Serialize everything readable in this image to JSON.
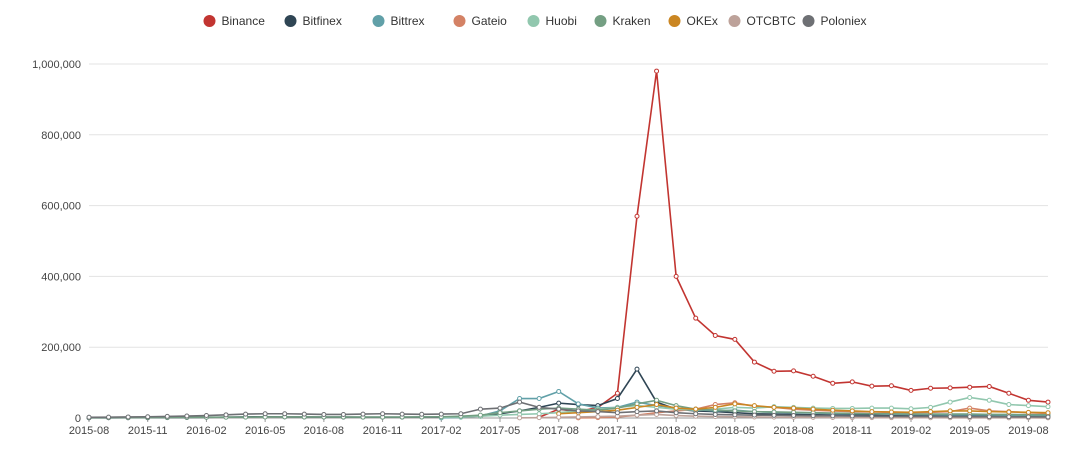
{
  "chart_data": {
    "type": "line",
    "title": "",
    "xlabel": "",
    "ylabel": "",
    "ylim": [
      0,
      1000000
    ],
    "y_ticks": [
      "0",
      "200,000",
      "400,000",
      "600,000",
      "800,000",
      "1,000,000"
    ],
    "y_tick_values": [
      0,
      200000,
      400000,
      600000,
      800000,
      1000000
    ],
    "x_ticks": [
      "2015-08",
      "2015-11",
      "2016-02",
      "2016-05",
      "2016-08",
      "2016-11",
      "2017-02",
      "2017-05",
      "2017-08",
      "2017-11",
      "2018-02",
      "2018-05",
      "2018-08",
      "2018-11",
      "2019-02",
      "2019-05",
      "2019-08"
    ],
    "grid": "horizontal",
    "legend_position": "top-center",
    "x": [
      "2015-08",
      "2015-09",
      "2015-10",
      "2015-11",
      "2015-12",
      "2016-01",
      "2016-02",
      "2016-03",
      "2016-04",
      "2016-05",
      "2016-06",
      "2016-07",
      "2016-08",
      "2016-09",
      "2016-10",
      "2016-11",
      "2016-12",
      "2017-01",
      "2017-02",
      "2017-03",
      "2017-04",
      "2017-05",
      "2017-06",
      "2017-07",
      "2017-08",
      "2017-09",
      "2017-10",
      "2017-11",
      "2017-12",
      "2018-01",
      "2018-02",
      "2018-03",
      "2018-04",
      "2018-05",
      "2018-06",
      "2018-07",
      "2018-08",
      "2018-09",
      "2018-10",
      "2018-11",
      "2018-12",
      "2019-01",
      "2019-02",
      "2019-03",
      "2019-04",
      "2019-05",
      "2019-06",
      "2019-07",
      "2019-08",
      "2019-09"
    ],
    "series": [
      {
        "name": "Binance",
        "color": "#c23531",
        "values": [
          null,
          null,
          null,
          null,
          null,
          null,
          null,
          null,
          null,
          null,
          null,
          null,
          null,
          null,
          null,
          null,
          null,
          null,
          null,
          null,
          null,
          null,
          null,
          2000,
          25000,
          18000,
          30000,
          70000,
          570000,
          980000,
          400000,
          282000,
          233000,
          222000,
          158000,
          132000,
          133000,
          118000,
          98000,
          102000,
          90000,
          91000,
          78000,
          84000,
          85000,
          87000,
          89000,
          70000,
          50000,
          45000
        ]
      },
      {
        "name": "Bitfinex",
        "color": "#2f4554",
        "values": [
          500,
          600,
          700,
          800,
          1200,
          1500,
          2000,
          2500,
          3000,
          3500,
          3200,
          3000,
          2800,
          2600,
          2500,
          2400,
          2500,
          2800,
          3000,
          3500,
          5000,
          12000,
          20000,
          30000,
          42000,
          38000,
          35000,
          55000,
          138000,
          45000,
          25000,
          20000,
          18000,
          15000,
          12000,
          11000,
          10000,
          9000,
          8500,
          8000,
          7500,
          7000,
          6500,
          6000,
          6000,
          6000,
          5500,
          5000,
          5000,
          4500
        ]
      },
      {
        "name": "Bittrex",
        "color": "#61a0a8",
        "values": [
          null,
          null,
          null,
          null,
          null,
          null,
          null,
          null,
          null,
          null,
          null,
          null,
          null,
          null,
          null,
          null,
          null,
          null,
          500,
          2000,
          6000,
          20000,
          55000,
          55000,
          75000,
          40000,
          28000,
          30000,
          45000,
          35000,
          28000,
          24000,
          20000,
          22000,
          18000,
          16000,
          15000,
          14000,
          13000,
          12000,
          12000,
          11000,
          10000,
          10000,
          9000,
          9000,
          8500,
          8000,
          7500,
          7000
        ]
      },
      {
        "name": "Gateio",
        "color": "#d48265",
        "values": [
          null,
          null,
          null,
          null,
          null,
          null,
          null,
          null,
          null,
          null,
          null,
          null,
          null,
          null,
          null,
          null,
          null,
          null,
          null,
          null,
          null,
          null,
          null,
          null,
          null,
          500,
          1000,
          3000,
          8000,
          15000,
          20000,
          25000,
          38000,
          43000,
          33000,
          30000,
          25000,
          22000,
          20000,
          18000,
          17000,
          16000,
          15000,
          16000,
          18000,
          28000,
          20000,
          18000,
          15000,
          13000
        ]
      },
      {
        "name": "Huobi",
        "color": "#91c7ae",
        "values": [
          null,
          null,
          null,
          null,
          null,
          null,
          null,
          null,
          null,
          null,
          null,
          null,
          null,
          null,
          null,
          null,
          null,
          null,
          2000,
          3000,
          5000,
          8000,
          10000,
          12000,
          15000,
          20000,
          25000,
          30000,
          35000,
          30000,
          25000,
          22000,
          25000,
          30000,
          28000,
          32000,
          30000,
          28000,
          27000,
          27000,
          28000,
          28000,
          26000,
          30000,
          45000,
          58000,
          50000,
          38000,
          35000,
          32000
        ]
      },
      {
        "name": "Kraken",
        "color": "#749f83",
        "values": [
          1000,
          1100,
          1200,
          1300,
          1500,
          1800,
          2000,
          2200,
          2500,
          3000,
          3200,
          3000,
          2800,
          2700,
          2600,
          2600,
          2700,
          3000,
          3500,
          5000,
          8000,
          15000,
          20000,
          25000,
          28000,
          25000,
          22000,
          28000,
          40000,
          50000,
          35000,
          25000,
          22000,
          20000,
          18000,
          17000,
          16000,
          15000,
          14000,
          13000,
          12000,
          12000,
          11000,
          11000,
          11000,
          11000,
          10000,
          10000,
          9500,
          9000
        ]
      },
      {
        "name": "OKEx",
        "color": "#ca8622",
        "values": [
          null,
          null,
          null,
          null,
          null,
          null,
          null,
          null,
          null,
          null,
          null,
          null,
          null,
          null,
          null,
          null,
          null,
          null,
          null,
          null,
          null,
          null,
          null,
          null,
          12000,
          15000,
          18000,
          22000,
          30000,
          38000,
          28000,
          25000,
          30000,
          40000,
          35000,
          30000,
          28000,
          25000,
          22000,
          20000,
          18000,
          17000,
          16000,
          18000,
          20000,
          20000,
          18000,
          17000,
          16000,
          15000
        ]
      },
      {
        "name": "OTCBTC",
        "color": "#bda29a",
        "values": [
          null,
          null,
          null,
          null,
          null,
          null,
          null,
          null,
          null,
          null,
          null,
          null,
          null,
          null,
          null,
          null,
          null,
          null,
          null,
          null,
          null,
          null,
          500,
          1000,
          2000,
          3000,
          4000,
          5000,
          8000,
          10000,
          7000,
          5000,
          4000,
          3500,
          3000,
          2500,
          2000,
          1800,
          1500,
          1200,
          1000,
          900,
          800,
          700,
          600,
          500,
          500,
          400,
          400,
          300
        ]
      },
      {
        "name": "Poloniex",
        "color": "#6e7074",
        "values": [
          2000,
          2500,
          3000,
          3500,
          4500,
          5500,
          7000,
          9000,
          11000,
          12000,
          12000,
          11000,
          10000,
          10000,
          11000,
          12000,
          11000,
          10500,
          11000,
          12000,
          25000,
          28000,
          45000,
          30000,
          25000,
          20000,
          18000,
          15000,
          18000,
          20000,
          15000,
          12000,
          10000,
          9000,
          8000,
          7500,
          7000,
          6500,
          6000,
          5500,
          5000,
          4800,
          4500,
          4200,
          4000,
          3800,
          3600,
          3400,
          3200,
          3000
        ]
      }
    ]
  }
}
